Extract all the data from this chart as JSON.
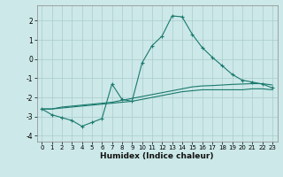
{
  "xlabel": "Humidex (Indice chaleur)",
  "xlim": [
    -0.5,
    23.5
  ],
  "ylim": [
    -4.3,
    2.8
  ],
  "yticks": [
    -4,
    -3,
    -2,
    -1,
    0,
    1,
    2
  ],
  "xticks": [
    0,
    1,
    2,
    3,
    4,
    5,
    6,
    7,
    8,
    9,
    10,
    11,
    12,
    13,
    14,
    15,
    16,
    17,
    18,
    19,
    20,
    21,
    22,
    23
  ],
  "bg_color": "#cce8e8",
  "line_color": "#1a7a6e",
  "grid_color": "#aacccc",
  "line1_x": [
    0,
    1,
    2,
    3,
    4,
    5,
    6,
    7,
    8,
    9,
    10,
    11,
    12,
    13,
    14,
    15,
    16,
    17,
    18,
    19,
    20,
    21,
    22,
    23
  ],
  "line1_y": [
    -2.6,
    -2.9,
    -3.05,
    -3.2,
    -3.5,
    -3.3,
    -3.1,
    -1.3,
    -2.1,
    -2.2,
    -0.2,
    0.7,
    1.2,
    2.25,
    2.2,
    1.3,
    0.6,
    0.1,
    -0.35,
    -0.8,
    -1.1,
    -1.2,
    -1.3,
    -1.5
  ],
  "line2_x": [
    0,
    1,
    2,
    3,
    4,
    5,
    6,
    7,
    8,
    9,
    10,
    11,
    12,
    13,
    14,
    15,
    16,
    17,
    18,
    19,
    20,
    21,
    22,
    23
  ],
  "line2_y": [
    -2.6,
    -2.6,
    -2.55,
    -2.5,
    -2.45,
    -2.4,
    -2.35,
    -2.3,
    -2.25,
    -2.2,
    -2.1,
    -2.0,
    -1.9,
    -1.8,
    -1.7,
    -1.65,
    -1.6,
    -1.6,
    -1.6,
    -1.6,
    -1.6,
    -1.55,
    -1.55,
    -1.6
  ],
  "line3_x": [
    0,
    1,
    2,
    3,
    4,
    5,
    6,
    7,
    8,
    9,
    10,
    11,
    12,
    13,
    14,
    15,
    16,
    17,
    18,
    19,
    20,
    21,
    22,
    23
  ],
  "line3_y": [
    -2.6,
    -2.6,
    -2.5,
    -2.45,
    -2.4,
    -2.35,
    -2.3,
    -2.25,
    -2.15,
    -2.05,
    -1.95,
    -1.85,
    -1.75,
    -1.65,
    -1.55,
    -1.45,
    -1.4,
    -1.38,
    -1.35,
    -1.32,
    -1.3,
    -1.28,
    -1.28,
    -1.35
  ]
}
